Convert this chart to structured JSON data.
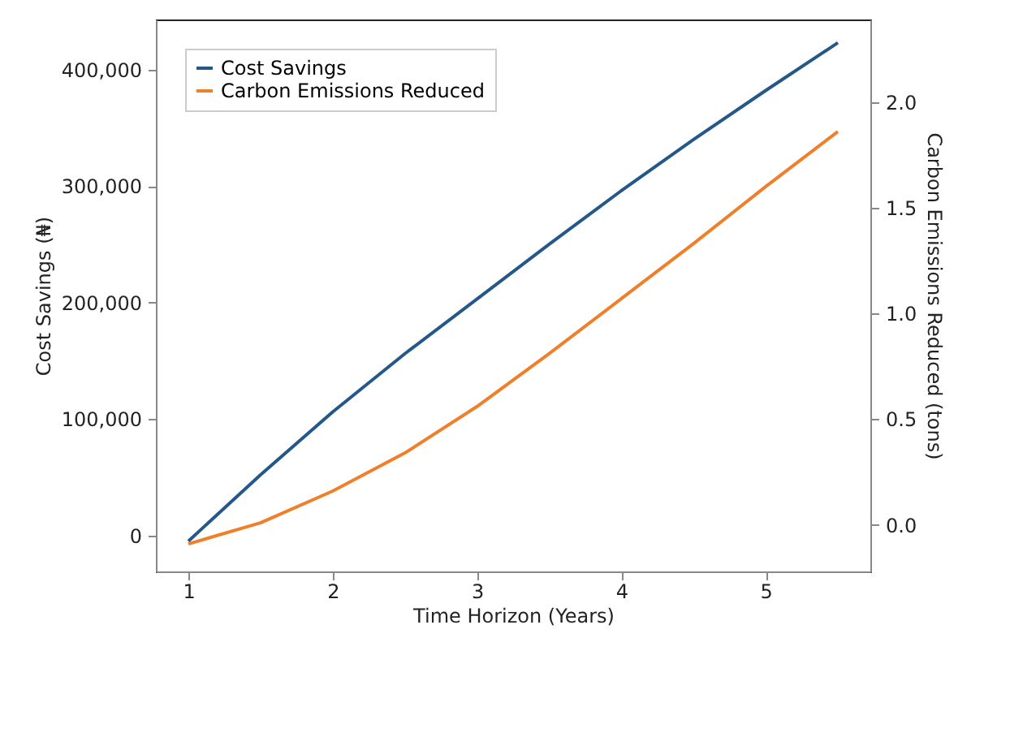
{
  "chart_data": {
    "type": "line",
    "xlabel": "Time Horizon (Years)",
    "ylabel": "Cost Savings (₦)",
    "y2label": "Carbon Emissions Reduced (tons)",
    "x": [
      1,
      1.5,
      2,
      2.5,
      3,
      3.5,
      4,
      4.5,
      5,
      5.5
    ],
    "series": [
      {
        "name": "Cost Savings",
        "color": "#25588a",
        "values": [
          -5000,
          52000,
          106000,
          156000,
          203000,
          250000,
          296000,
          340000,
          382000,
          423000
        ]
      },
      {
        "name": "Carbon Emissions Reduced",
        "color": "#f07f2a",
        "axis": "y2",
        "values": [
          -0.09,
          0.01,
          0.16,
          0.34,
          0.56,
          0.81,
          1.07,
          1.33,
          1.6,
          1.86
        ]
      }
    ],
    "xlim": [
      0.775,
      5.725
    ],
    "xticks": [
      1,
      2,
      3,
      4,
      5
    ],
    "ylim": [
      -31000,
      443000
    ],
    "yticks": [
      0,
      {
        "value": 100000,
        "label": "100,000"
      },
      {
        "value": 200000,
        "label": "200,000"
      },
      {
        "value": 300000,
        "label": "300,000"
      },
      {
        "value": 400000,
        "label": "400,000"
      }
    ],
    "y2lim": [
      -0.22,
      2.39
    ],
    "y2ticks": [
      {
        "value": 0,
        "label": "0.0"
      },
      {
        "value": 0.5,
        "label": "0.5"
      },
      {
        "value": 1,
        "label": "1.0"
      },
      {
        "value": 1.5,
        "label": "1.5"
      },
      {
        "value": 2,
        "label": "2.0"
      }
    ],
    "grid": false,
    "legend": "top left",
    "marker": "none",
    "line_style": "solid"
  }
}
